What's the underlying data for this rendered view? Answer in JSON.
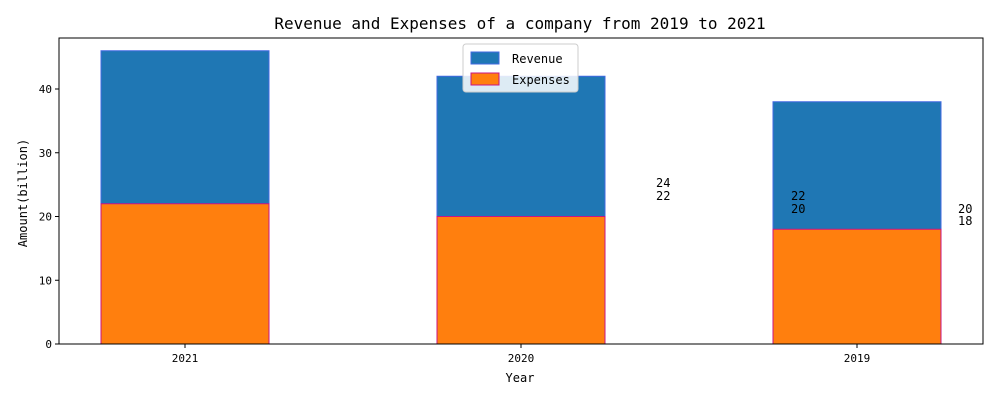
{
  "chart_data": {
    "type": "bar",
    "title": "Revenue and Expenses of a company from 2019 to 2021",
    "xlabel": "Year",
    "ylabel": "Amount(billion)",
    "categories": [
      "2021",
      "2020",
      "2019"
    ],
    "series": [
      {
        "name": "Revenue",
        "values": [
          24,
          22,
          20
        ],
        "color": "#1f77b4",
        "edge_color": "#4169e1"
      },
      {
        "name": "Expenses",
        "values": [
          22,
          20,
          18
        ],
        "color": "#ff7f0e",
        "edge_color": "#c71585"
      }
    ],
    "stacked": true,
    "ylim": [
      0,
      48
    ],
    "yticks": [
      "0",
      "10",
      "20",
      "30",
      "40"
    ],
    "legend_position": "top-center",
    "grid": false,
    "data_labels": [
      {
        "category": "2021",
        "series": "Revenue",
        "text": "24"
      },
      {
        "category": "2021",
        "series": "Expenses",
        "text": "22"
      },
      {
        "category": "2020",
        "series": "Revenue",
        "text": "22"
      },
      {
        "category": "2020",
        "series": "Expenses",
        "text": "20"
      },
      {
        "category": "2019",
        "series": "Revenue",
        "text": "20"
      },
      {
        "category": "2019",
        "series": "Expenses",
        "text": "18"
      }
    ]
  }
}
